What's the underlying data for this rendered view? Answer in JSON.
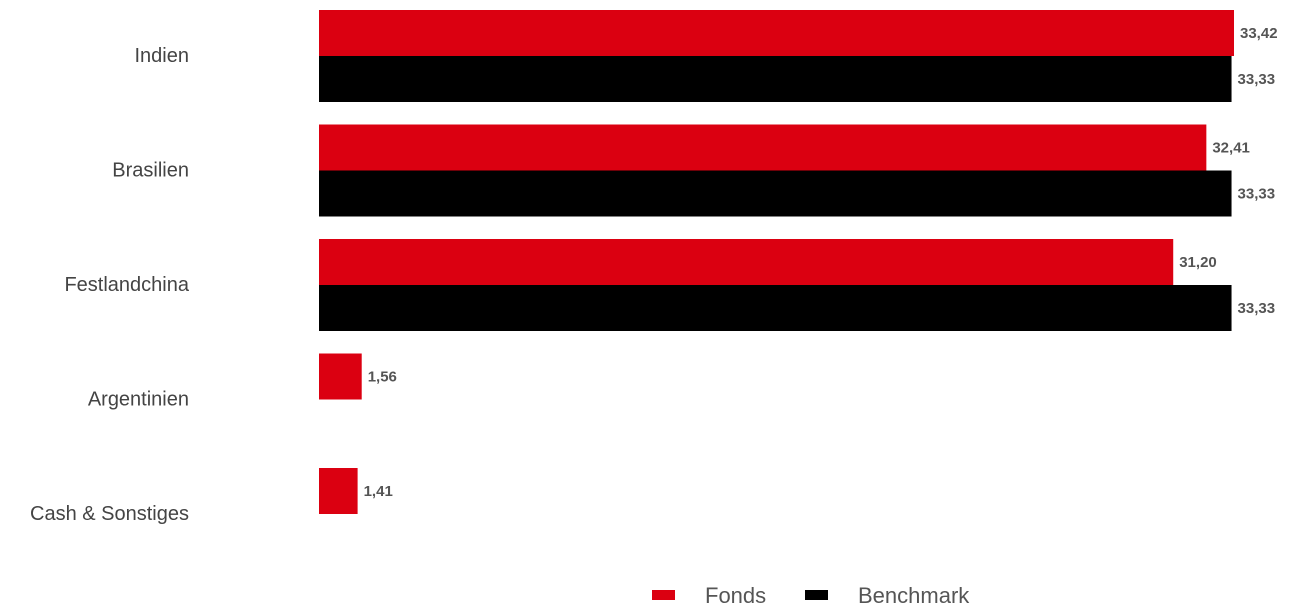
{
  "chart_data": {
    "type": "bar",
    "orientation": "horizontal",
    "categories": [
      "Indien",
      "Brasilien",
      "Festlandchina",
      "Argentinien",
      "Cash & Sonstiges"
    ],
    "series": [
      {
        "name": "Fonds",
        "color": "#db0011",
        "values": [
          33.42,
          32.41,
          31.2,
          1.56,
          1.41
        ],
        "labels": [
          "33,42",
          "32,41",
          "31,20",
          "1,56",
          "1,41"
        ]
      },
      {
        "name": "Benchmark",
        "color": "#000000",
        "values": [
          33.33,
          33.33,
          33.33,
          null,
          null
        ],
        "labels": [
          "33,33",
          "33,33",
          "33,33",
          null,
          null
        ]
      }
    ],
    "title": "",
    "xlabel": "",
    "ylabel": "",
    "xlim": [
      0,
      33.42
    ],
    "grid": false,
    "legend_position": "bottom"
  }
}
